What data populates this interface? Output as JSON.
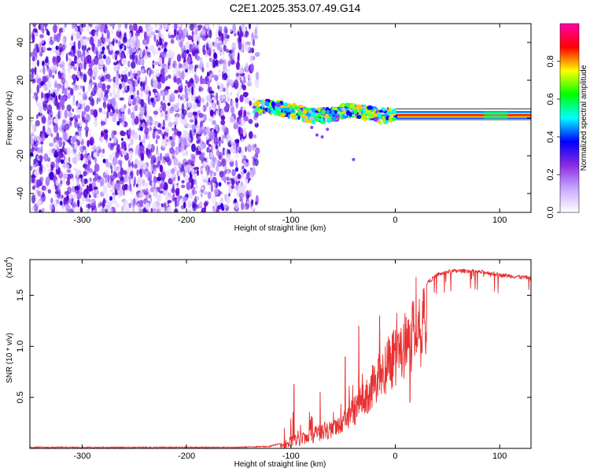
{
  "title": "C2E1.2025.353.07.49.G14",
  "chart_data": [
    {
      "type": "heatmap",
      "name": "spectrogram",
      "xlabel": "Height of straight line (km)",
      "ylabel": "Frequency (Hz)",
      "xlim": [
        -350,
        130
      ],
      "ylim": [
        -50,
        50
      ],
      "xticks": [
        -300,
        -200,
        -100,
        0,
        100
      ],
      "xtick_labels": [
        "-300",
        "-200",
        "-100",
        "0",
        "100"
      ],
      "yticks": [
        -40,
        -20,
        0,
        20,
        40
      ],
      "ytick_labels": [
        "-40",
        "-20",
        "0",
        "20",
        "40"
      ],
      "noise_region_x": [
        -350,
        -132
      ],
      "signal_track": [
        {
          "x": -135,
          "freq": 5
        },
        {
          "x": -120,
          "freq": 6
        },
        {
          "x": -100,
          "freq": 4
        },
        {
          "x": -80,
          "freq": 1
        },
        {
          "x": -60,
          "freq": 2
        },
        {
          "x": -45,
          "freq": 4
        },
        {
          "x": -30,
          "freq": 3
        },
        {
          "x": -15,
          "freq": 1
        },
        {
          "x": 0,
          "freq": 2
        },
        {
          "x": 20,
          "freq": 1.5
        },
        {
          "x": 60,
          "freq": 1.5
        },
        {
          "x": 90,
          "freq": 1.5
        },
        {
          "x": 130,
          "freq": 1.5
        }
      ],
      "colorbar": {
        "label": "Normalized spectral amplitude",
        "ticks": [
          0.0,
          0.2,
          0.4,
          0.6,
          0.8
        ],
        "tick_labels": [
          "0.0",
          "0.2",
          "0.4",
          "0.6",
          "0.8"
        ],
        "range": [
          0,
          1
        ],
        "colors": [
          "#ffffff",
          "#c8a8ff",
          "#8a2be2",
          "#0000ff",
          "#00ffff",
          "#00ff00",
          "#ffff00",
          "#ff0000",
          "#ff00aa"
        ]
      }
    },
    {
      "type": "line",
      "name": "snr",
      "xlabel": "Height of straight line (km)",
      "ylabel": "SNR (10 * v/v)",
      "multiplier_label": "(x10",
      "multiplier_exp": "4",
      "xlim": [
        -350,
        130
      ],
      "ylim": [
        0,
        1.85
      ],
      "xticks": [
        -300,
        -200,
        -100,
        0,
        100
      ],
      "xtick_labels": [
        "-300",
        "-200",
        "-100",
        "0",
        "100"
      ],
      "yticks": [
        0.5,
        1.0,
        1.5
      ],
      "ytick_labels": [
        "0.5",
        "1.0",
        "1.5"
      ],
      "line_color": "#e83030",
      "envelope_x": [
        -350,
        -250,
        -150,
        -120,
        -110,
        -100,
        -90,
        -80,
        -70,
        -60,
        -50,
        -40,
        -30,
        -20,
        -10,
        0,
        10,
        20,
        30,
        40,
        50,
        60,
        70,
        80,
        90,
        100,
        110,
        120,
        130
      ],
      "envelope_y": [
        0.01,
        0.01,
        0.01,
        0.02,
        0.05,
        0.12,
        0.15,
        0.2,
        0.25,
        0.3,
        0.35,
        0.5,
        0.65,
        0.85,
        1.05,
        1.2,
        1.35,
        1.5,
        1.62,
        1.7,
        1.73,
        1.74,
        1.74,
        1.73,
        1.72,
        1.7,
        1.69,
        1.68,
        1.67
      ],
      "spike_points": [
        {
          "x": -97,
          "y": 0.63
        },
        {
          "x": -72,
          "y": 0.55
        },
        {
          "x": -48,
          "y": 0.9
        },
        {
          "x": -35,
          "y": 1.2
        },
        {
          "x": -15,
          "y": 1.3
        },
        {
          "x": 14,
          "y": 0.45
        }
      ]
    }
  ]
}
